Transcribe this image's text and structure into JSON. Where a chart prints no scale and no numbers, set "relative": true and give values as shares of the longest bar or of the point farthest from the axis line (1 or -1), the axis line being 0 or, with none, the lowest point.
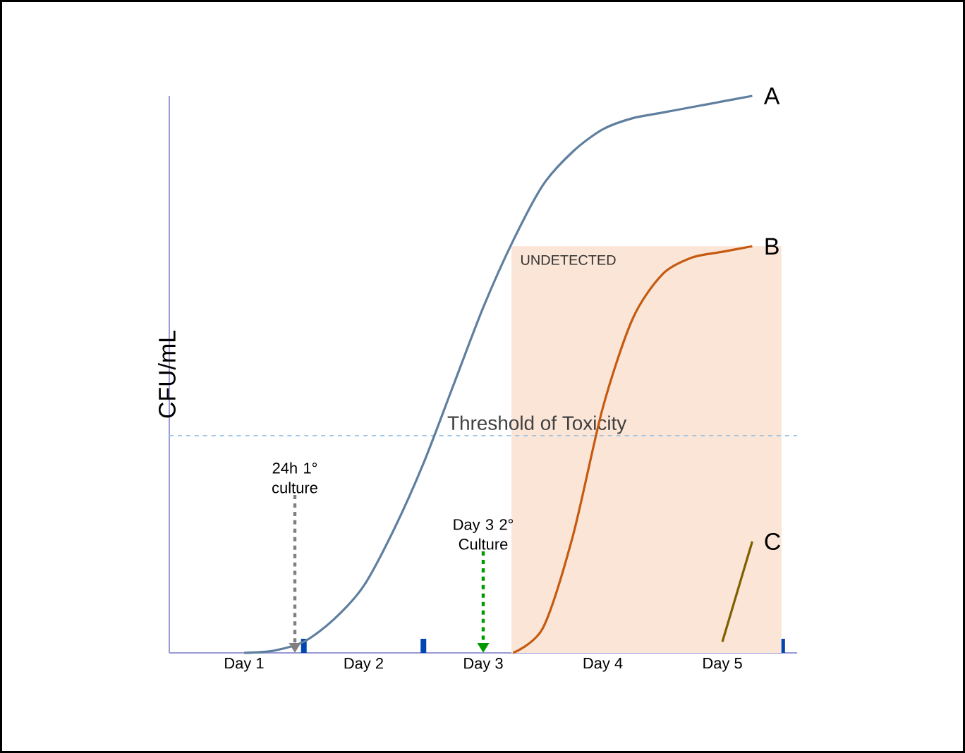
{
  "chart_data": {
    "type": "line",
    "relative": true,
    "ylabel": "CFU/mL",
    "tick_labels": "x",
    "categories": [
      null,
      null,
      "Day 1",
      null,
      null,
      null,
      "Day 2",
      null,
      null,
      null,
      "Day 3",
      null,
      null,
      null,
      "Day 4",
      null,
      null,
      null,
      "Day 5",
      null,
      null
    ],
    "series": [
      {
        "name": "A",
        "color": "#5f7f9f",
        "values": [
          null,
          null,
          0,
          0.004,
          0.02,
          0.06,
          0.12,
          0.22,
          0.34,
          0.48,
          0.62,
          0.74,
          0.84,
          0.9,
          0.94,
          0.96,
          0.97,
          0.98,
          0.99,
          1,
          null
        ]
      },
      {
        "name": "B",
        "color": "#c55a11",
        "values": [
          null,
          null,
          null,
          null,
          null,
          null,
          null,
          null,
          null,
          null,
          null,
          0,
          0.045,
          0.21,
          0.44,
          0.6,
          0.68,
          0.71,
          0.72,
          0.73,
          null
        ]
      },
      {
        "name": "C",
        "color": "#7f6000",
        "values": [
          null,
          null,
          null,
          null,
          null,
          null,
          null,
          null,
          null,
          null,
          null,
          null,
          null,
          null,
          null,
          null,
          null,
          null,
          0.02,
          0.2,
          null
        ]
      }
    ],
    "ref_lines": [
      {
        "axis": "y",
        "value": 0.39,
        "label": "Threshold of Toxicity",
        "color": "#9dc3e6",
        "line_style": "dashed"
      }
    ],
    "annotations": [
      "24h 1° culture",
      "Day 3 2° Culture",
      "UNDETECTED"
    ]
  }
}
